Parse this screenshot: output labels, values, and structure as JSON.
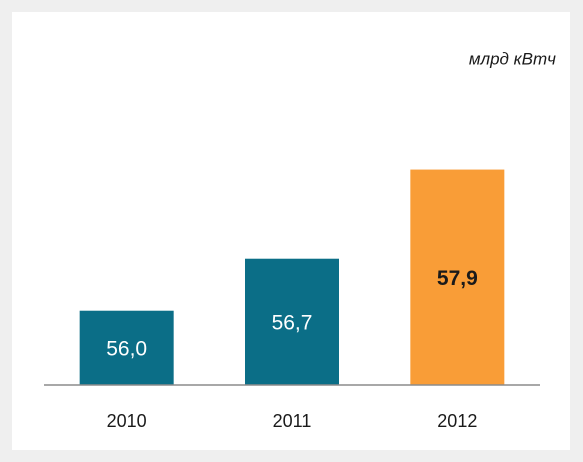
{
  "chart_data": {
    "type": "bar",
    "unit_label": "млрд кВтч",
    "categories": [
      "2010",
      "2011",
      "2012"
    ],
    "values": [
      56.0,
      56.7,
      57.9
    ],
    "value_labels": [
      "56,0",
      "56,7",
      "57,9"
    ],
    "colors": [
      "#0b6e87",
      "#0b6e87",
      "#f99d37"
    ],
    "label_colors": [
      "#ffffff",
      "#ffffff",
      "#1a1a1a"
    ],
    "ylim": [
      55,
      58.5
    ]
  }
}
